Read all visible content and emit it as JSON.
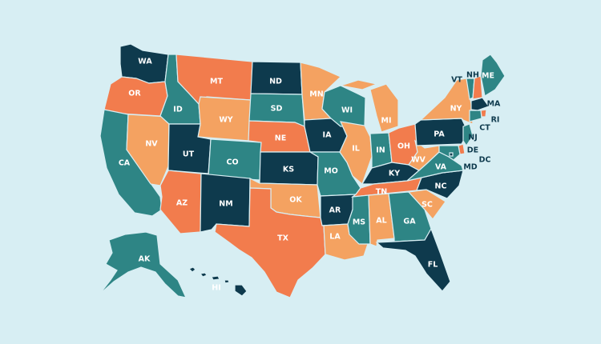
{
  "map": {
    "palette": {
      "navy": "#0e3a4d",
      "teal": "#2e8585",
      "coral": "#f27c4d",
      "orange": "#f4a261",
      "background": "#d7eef3"
    },
    "states": [
      {
        "id": "WA",
        "label": "WA",
        "color": "navy"
      },
      {
        "id": "OR",
        "label": "OR",
        "color": "coral"
      },
      {
        "id": "CA",
        "label": "CA",
        "color": "teal"
      },
      {
        "id": "NV",
        "label": "NV",
        "color": "orange"
      },
      {
        "id": "ID",
        "label": "ID",
        "color": "teal"
      },
      {
        "id": "MT",
        "label": "MT",
        "color": "coral"
      },
      {
        "id": "WY",
        "label": "WY",
        "color": "orange"
      },
      {
        "id": "UT",
        "label": "UT",
        "color": "navy"
      },
      {
        "id": "CO",
        "label": "CO",
        "color": "teal"
      },
      {
        "id": "AZ",
        "label": "AZ",
        "color": "coral"
      },
      {
        "id": "NM",
        "label": "NM",
        "color": "navy"
      },
      {
        "id": "ND",
        "label": "ND",
        "color": "navy"
      },
      {
        "id": "SD",
        "label": "SD",
        "color": "teal"
      },
      {
        "id": "NE",
        "label": "NE",
        "color": "coral"
      },
      {
        "id": "KS",
        "label": "KS",
        "color": "navy"
      },
      {
        "id": "OK",
        "label": "OK",
        "color": "orange"
      },
      {
        "id": "TX",
        "label": "TX",
        "color": "coral"
      },
      {
        "id": "MN",
        "label": "MN",
        "color": "orange"
      },
      {
        "id": "IA",
        "label": "IA",
        "color": "navy"
      },
      {
        "id": "MO",
        "label": "MO",
        "color": "teal"
      },
      {
        "id": "AR",
        "label": "AR",
        "color": "navy"
      },
      {
        "id": "LA",
        "label": "LA",
        "color": "orange"
      },
      {
        "id": "WI",
        "label": "WI",
        "color": "teal"
      },
      {
        "id": "IL",
        "label": "IL",
        "color": "orange"
      },
      {
        "id": "MI",
        "label": "MI",
        "color": "orange"
      },
      {
        "id": "IN",
        "label": "IN",
        "color": "teal"
      },
      {
        "id": "OH",
        "label": "OH",
        "color": "coral"
      },
      {
        "id": "KY",
        "label": "KY",
        "color": "navy"
      },
      {
        "id": "TN",
        "label": "TN",
        "color": "coral"
      },
      {
        "id": "MS",
        "label": "MS",
        "color": "teal"
      },
      {
        "id": "AL",
        "label": "AL",
        "color": "orange"
      },
      {
        "id": "GA",
        "label": "GA",
        "color": "teal"
      },
      {
        "id": "FL",
        "label": "FL",
        "color": "navy"
      },
      {
        "id": "SC",
        "label": "SC",
        "color": "orange"
      },
      {
        "id": "NC",
        "label": "NC",
        "color": "navy"
      },
      {
        "id": "VA",
        "label": "VA",
        "color": "teal"
      },
      {
        "id": "WV",
        "label": "WV",
        "color": "orange"
      },
      {
        "id": "PA",
        "label": "PA",
        "color": "navy"
      },
      {
        "id": "NY",
        "label": "NY",
        "color": "orange"
      },
      {
        "id": "VT",
        "label": "VT",
        "color": "teal"
      },
      {
        "id": "NH",
        "label": "NH",
        "color": "coral"
      },
      {
        "id": "ME",
        "label": "ME",
        "color": "teal"
      },
      {
        "id": "MA",
        "label": "MA",
        "color": "navy"
      },
      {
        "id": "RI",
        "label": "RI",
        "color": "coral"
      },
      {
        "id": "CT",
        "label": "CT",
        "color": "teal"
      },
      {
        "id": "NJ",
        "label": "NJ",
        "color": "teal"
      },
      {
        "id": "DE",
        "label": "DE",
        "color": "coral"
      },
      {
        "id": "MD",
        "label": "MD",
        "color": "teal"
      },
      {
        "id": "DC",
        "label": "DC",
        "color": "navy"
      },
      {
        "id": "AK",
        "label": "AK",
        "color": "teal"
      },
      {
        "id": "HI",
        "label": "HI",
        "color": "navy"
      }
    ]
  }
}
